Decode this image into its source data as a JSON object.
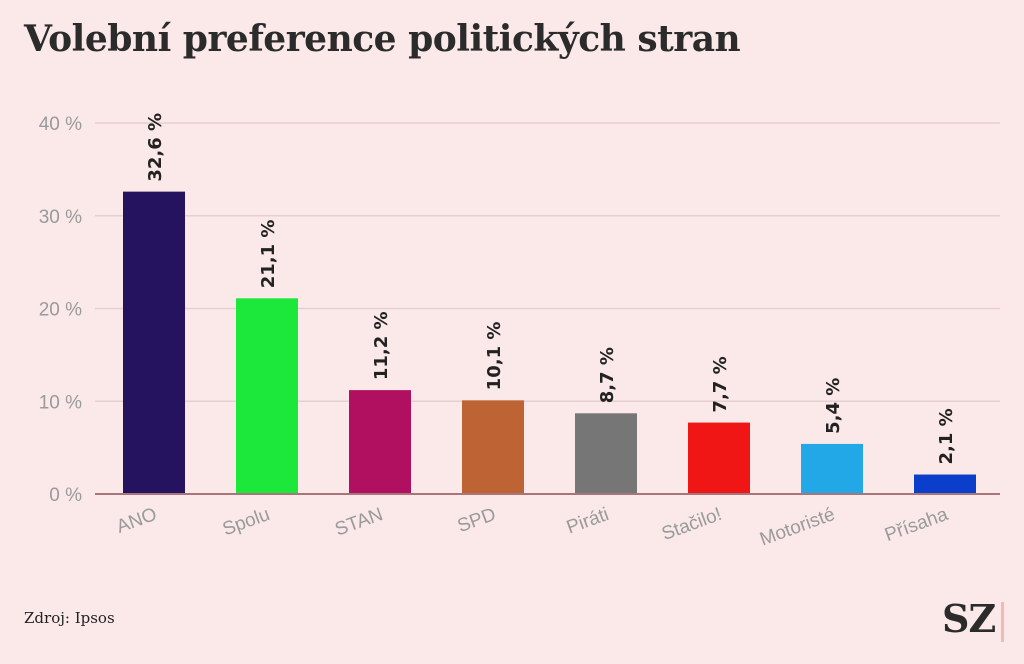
{
  "chart_data": {
    "type": "bar",
    "title": "Volební preference politických stran",
    "categories": [
      "ANO",
      "Spolu",
      "STAN",
      "SPD",
      "Piráti",
      "Stačilo!",
      "Motoristé",
      "Přísaha"
    ],
    "values": [
      32.6,
      21.1,
      11.2,
      10.1,
      8.7,
      7.7,
      5.4,
      2.1
    ],
    "value_labels": [
      "32,6 %",
      "21,1 %",
      "11,2 %",
      "10,1 %",
      "8,7 %",
      "7,7 %",
      "5,4 %",
      "2,1 %"
    ],
    "colors": [
      "#25135f",
      "#1ce83c",
      "#b0105f",
      "#be6333",
      "#767676",
      "#f01616",
      "#22a8e6",
      "#0b3fcb"
    ],
    "yticks": [
      0,
      10,
      20,
      30,
      40
    ],
    "ytick_labels": [
      "0 %",
      "10 %",
      "20 %",
      "30 %",
      "40 %"
    ],
    "ylim": [
      0,
      40
    ],
    "xlabel": "",
    "ylabel": "",
    "grid": true
  },
  "source": "Zdroj: Ipsos",
  "logo": "SZ"
}
